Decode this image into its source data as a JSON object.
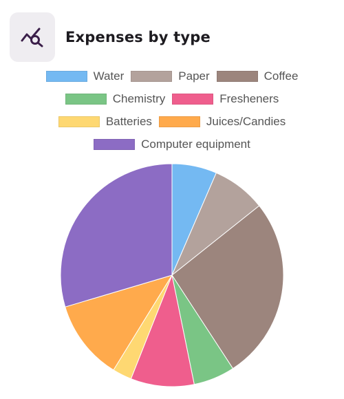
{
  "header": {
    "title": "Expenses by type",
    "icon": "chart-search-icon",
    "icon_color": "#3b1f4a"
  },
  "legend_rows": [
    [
      0,
      1,
      2
    ],
    [
      3,
      4
    ],
    [
      5,
      6
    ],
    [
      7
    ]
  ],
  "chart_data": {
    "type": "pie",
    "title": "Expenses by type",
    "categories": [
      "Water",
      "Paper",
      "Coffee",
      "Chemistry",
      "Fresheners",
      "Batteries",
      "Juices/Candies",
      "Computer equipment"
    ],
    "values": [
      6.5,
      7.8,
      26.5,
      6.0,
      9.2,
      2.8,
      11.6,
      29.6
    ],
    "colors": [
      "#74b9f2",
      "#b3a29c",
      "#9c857d",
      "#7ac585",
      "#ef5e8d",
      "#fed872",
      "#ffaa4c",
      "#8c6cc4"
    ],
    "legend_position": "top",
    "start_angle_deg": 0,
    "direction": "clockwise"
  }
}
